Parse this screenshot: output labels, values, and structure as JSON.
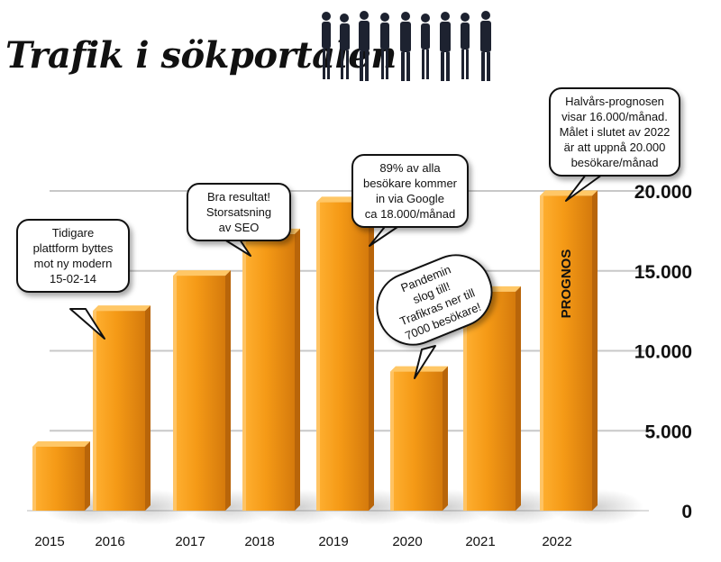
{
  "title": "Trafik i sökportalen",
  "colors": {
    "bar": "#f59a16",
    "bar_dark": "#b8650a",
    "bar_light": "#ffc766",
    "grid": "#c8c8c8"
  },
  "chart_data": {
    "type": "bar",
    "title": "Trafik i sökportalen",
    "xlabel": "",
    "ylabel": "",
    "categories": [
      "2015",
      "2016",
      "2017",
      "2018",
      "2019",
      "2020",
      "2021",
      "2022"
    ],
    "values": [
      4000,
      12500,
      14700,
      17300,
      19300,
      8700,
      13700,
      19700
    ],
    "ylim": [
      0,
      20000
    ],
    "yticks": [
      {
        "value": 0,
        "label": "0"
      },
      {
        "value": 5000,
        "label": "5.000"
      },
      {
        "value": 10000,
        "label": "10.000"
      },
      {
        "value": 15000,
        "label": "15.000"
      },
      {
        "value": 20000,
        "label": "20.000"
      }
    ],
    "grid": true,
    "axis_position": "right",
    "bar_labels": [
      {
        "category": "2022",
        "text": "PROGNOS"
      }
    ],
    "annotations": [
      {
        "category": "2016",
        "text": "Tidigare\nplattform byttes\nmot ny modern\n15-02-14"
      },
      {
        "category": "2018",
        "text": "Bra resultat!\nStorsatsning\nav SEO"
      },
      {
        "category": "2019",
        "text": "89% av alla\nbesökare kommer\nin via Google\nca 18.000/månad"
      },
      {
        "category": "2020",
        "text": "Pandemin\nslog till!\nTrafikras ner till\n7000 besökare!"
      },
      {
        "category": "2022",
        "text": "Halvårs-prognosen\nvisar 16.000/månad.\nMålet i slutet av 2022\när att uppnå 20.000\nbesökare/månad"
      }
    ]
  }
}
